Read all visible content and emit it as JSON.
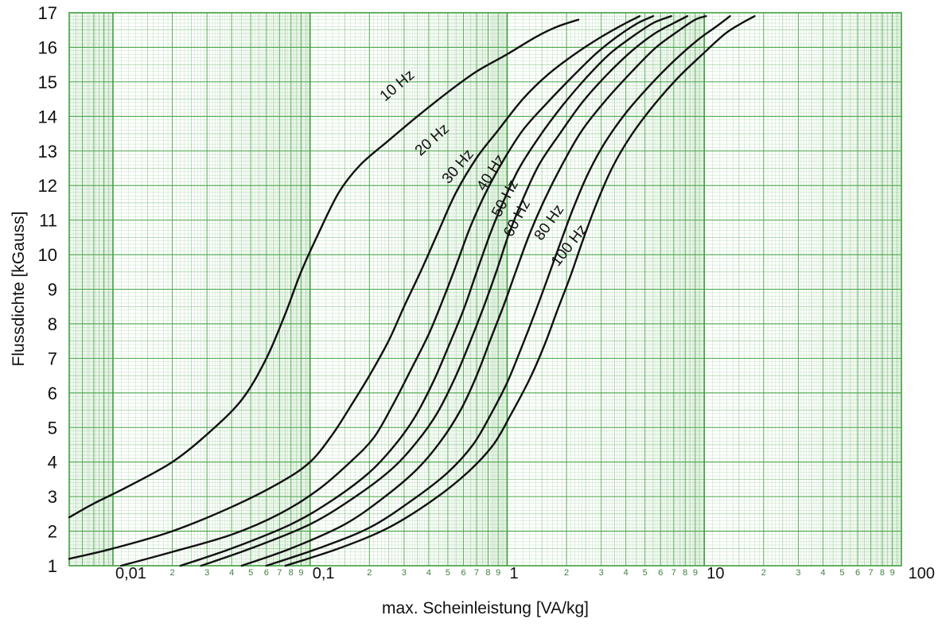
{
  "chart_data": {
    "type": "line",
    "title": "",
    "xlabel": "max. Scheinleistung [VA/kg]",
    "ylabel": "Flussdichte [kGauss]",
    "x_scale": "log",
    "xlim": [
      0.006,
      100
    ],
    "ylim": [
      1,
      17
    ],
    "grid": true,
    "legend": "none",
    "colors": {
      "grid": "#3f9f3f",
      "line": "#111111",
      "background": "#ffffff"
    },
    "x_major_ticks": [
      {
        "value": 0.01,
        "label": "0,01"
      },
      {
        "value": 0.1,
        "label": "0,1"
      },
      {
        "value": 1,
        "label": "1"
      },
      {
        "value": 10,
        "label": "10"
      },
      {
        "value": 100,
        "label": "100"
      }
    ],
    "x_minor_digits": [
      "2",
      "3",
      "4",
      "5",
      "6",
      "7",
      "8",
      "9"
    ],
    "y_ticks": [
      1,
      2,
      3,
      4,
      5,
      6,
      7,
      8,
      9,
      10,
      11,
      12,
      13,
      14,
      15,
      16,
      17
    ],
    "series": [
      {
        "name": "10 Hz",
        "points": [
          [
            0.006,
            2.4
          ],
          [
            0.008,
            2.8
          ],
          [
            0.012,
            3.3
          ],
          [
            0.02,
            4.0
          ],
          [
            0.03,
            4.8
          ],
          [
            0.045,
            5.8
          ],
          [
            0.06,
            7.0
          ],
          [
            0.075,
            8.3
          ],
          [
            0.09,
            9.5
          ],
          [
            0.11,
            10.6
          ],
          [
            0.14,
            11.8
          ],
          [
            0.18,
            12.6
          ],
          [
            0.25,
            13.3
          ],
          [
            0.35,
            14.0
          ],
          [
            0.5,
            14.7
          ],
          [
            0.7,
            15.3
          ],
          [
            1.0,
            15.8
          ],
          [
            1.4,
            16.3
          ],
          [
            1.8,
            16.6
          ],
          [
            2.3,
            16.8
          ]
        ]
      },
      {
        "name": "20 Hz",
        "points": [
          [
            0.006,
            1.2
          ],
          [
            0.01,
            1.5
          ],
          [
            0.02,
            2.0
          ],
          [
            0.04,
            2.7
          ],
          [
            0.07,
            3.4
          ],
          [
            0.1,
            4.0
          ],
          [
            0.13,
            4.8
          ],
          [
            0.16,
            5.6
          ],
          [
            0.2,
            6.5
          ],
          [
            0.25,
            7.5
          ],
          [
            0.3,
            8.5
          ],
          [
            0.37,
            9.6
          ],
          [
            0.45,
            10.7
          ],
          [
            0.55,
            11.8
          ],
          [
            0.7,
            12.8
          ],
          [
            0.9,
            13.6
          ],
          [
            1.2,
            14.5
          ],
          [
            1.6,
            15.2
          ],
          [
            2.2,
            15.8
          ],
          [
            3.0,
            16.3
          ],
          [
            4.0,
            16.7
          ],
          [
            4.7,
            16.9
          ]
        ]
      },
      {
        "name": "30 Hz",
        "points": [
          [
            0.011,
            1.0
          ],
          [
            0.02,
            1.4
          ],
          [
            0.04,
            1.9
          ],
          [
            0.07,
            2.5
          ],
          [
            0.11,
            3.2
          ],
          [
            0.16,
            4.0
          ],
          [
            0.21,
            4.7
          ],
          [
            0.26,
            5.6
          ],
          [
            0.32,
            6.6
          ],
          [
            0.4,
            7.7
          ],
          [
            0.48,
            8.8
          ],
          [
            0.56,
            9.8
          ],
          [
            0.65,
            10.8
          ],
          [
            0.78,
            11.8
          ],
          [
            0.95,
            12.7
          ],
          [
            1.2,
            13.6
          ],
          [
            1.6,
            14.4
          ],
          [
            2.1,
            15.1
          ],
          [
            2.8,
            15.8
          ],
          [
            3.6,
            16.3
          ],
          [
            4.6,
            16.7
          ],
          [
            5.5,
            16.9
          ]
        ]
      },
      {
        "name": "40 Hz",
        "points": [
          [
            0.022,
            1.0
          ],
          [
            0.04,
            1.5
          ],
          [
            0.08,
            2.2
          ],
          [
            0.13,
            2.9
          ],
          [
            0.2,
            3.7
          ],
          [
            0.27,
            4.5
          ],
          [
            0.34,
            5.3
          ],
          [
            0.42,
            6.3
          ],
          [
            0.5,
            7.3
          ],
          [
            0.6,
            8.4
          ],
          [
            0.7,
            9.5
          ],
          [
            0.82,
            10.6
          ],
          [
            0.95,
            11.5
          ],
          [
            1.15,
            12.5
          ],
          [
            1.45,
            13.4
          ],
          [
            1.9,
            14.3
          ],
          [
            2.5,
            15.1
          ],
          [
            3.3,
            15.8
          ],
          [
            4.3,
            16.3
          ],
          [
            5.5,
            16.7
          ],
          [
            6.8,
            16.9
          ]
        ]
      },
      {
        "name": "50 Hz",
        "points": [
          [
            0.028,
            1.0
          ],
          [
            0.05,
            1.5
          ],
          [
            0.1,
            2.2
          ],
          [
            0.17,
            3.0
          ],
          [
            0.26,
            3.8
          ],
          [
            0.35,
            4.6
          ],
          [
            0.44,
            5.4
          ],
          [
            0.54,
            6.4
          ],
          [
            0.64,
            7.4
          ],
          [
            0.75,
            8.4
          ],
          [
            0.88,
            9.5
          ],
          [
            1.02,
            10.6
          ],
          [
            1.2,
            11.6
          ],
          [
            1.45,
            12.6
          ],
          [
            1.85,
            13.5
          ],
          [
            2.4,
            14.4
          ],
          [
            3.2,
            15.2
          ],
          [
            4.3,
            15.9
          ],
          [
            5.6,
            16.4
          ],
          [
            7.0,
            16.7
          ],
          [
            8.2,
            16.9
          ]
        ]
      },
      {
        "name": "60 Hz",
        "points": [
          [
            0.045,
            1.0
          ],
          [
            0.08,
            1.5
          ],
          [
            0.15,
            2.2
          ],
          [
            0.24,
            3.0
          ],
          [
            0.35,
            3.8
          ],
          [
            0.46,
            4.6
          ],
          [
            0.58,
            5.5
          ],
          [
            0.7,
            6.5
          ],
          [
            0.83,
            7.6
          ],
          [
            0.97,
            8.6
          ],
          [
            1.12,
            9.6
          ],
          [
            1.3,
            10.6
          ],
          [
            1.55,
            11.6
          ],
          [
            1.9,
            12.6
          ],
          [
            2.4,
            13.6
          ],
          [
            3.2,
            14.5
          ],
          [
            4.3,
            15.3
          ],
          [
            5.7,
            16.0
          ],
          [
            7.5,
            16.5
          ],
          [
            9.0,
            16.8
          ],
          [
            10.2,
            16.9
          ]
        ]
      },
      {
        "name": "80 Hz",
        "points": [
          [
            0.06,
            1.0
          ],
          [
            0.11,
            1.5
          ],
          [
            0.2,
            2.1
          ],
          [
            0.33,
            2.9
          ],
          [
            0.5,
            3.7
          ],
          [
            0.67,
            4.5
          ],
          [
            0.83,
            5.4
          ],
          [
            1.0,
            6.3
          ],
          [
            1.18,
            7.3
          ],
          [
            1.38,
            8.3
          ],
          [
            1.6,
            9.3
          ],
          [
            1.85,
            10.3
          ],
          [
            2.15,
            11.3
          ],
          [
            2.55,
            12.3
          ],
          [
            3.1,
            13.2
          ],
          [
            4.0,
            14.1
          ],
          [
            5.3,
            14.9
          ],
          [
            7.0,
            15.6
          ],
          [
            9.2,
            16.2
          ],
          [
            11.5,
            16.6
          ],
          [
            13.5,
            16.9
          ]
        ]
      },
      {
        "name": "100 Hz",
        "points": [
          [
            0.075,
            1.0
          ],
          [
            0.14,
            1.5
          ],
          [
            0.25,
            2.1
          ],
          [
            0.42,
            2.9
          ],
          [
            0.63,
            3.7
          ],
          [
            0.85,
            4.5
          ],
          [
            1.05,
            5.4
          ],
          [
            1.3,
            6.4
          ],
          [
            1.55,
            7.4
          ],
          [
            1.8,
            8.4
          ],
          [
            2.1,
            9.4
          ],
          [
            2.45,
            10.5
          ],
          [
            2.85,
            11.5
          ],
          [
            3.4,
            12.5
          ],
          [
            4.2,
            13.4
          ],
          [
            5.5,
            14.3
          ],
          [
            7.3,
            15.1
          ],
          [
            9.8,
            15.8
          ],
          [
            12.8,
            16.4
          ],
          [
            15.5,
            16.7
          ],
          [
            18.0,
            16.9
          ]
        ]
      }
    ]
  }
}
